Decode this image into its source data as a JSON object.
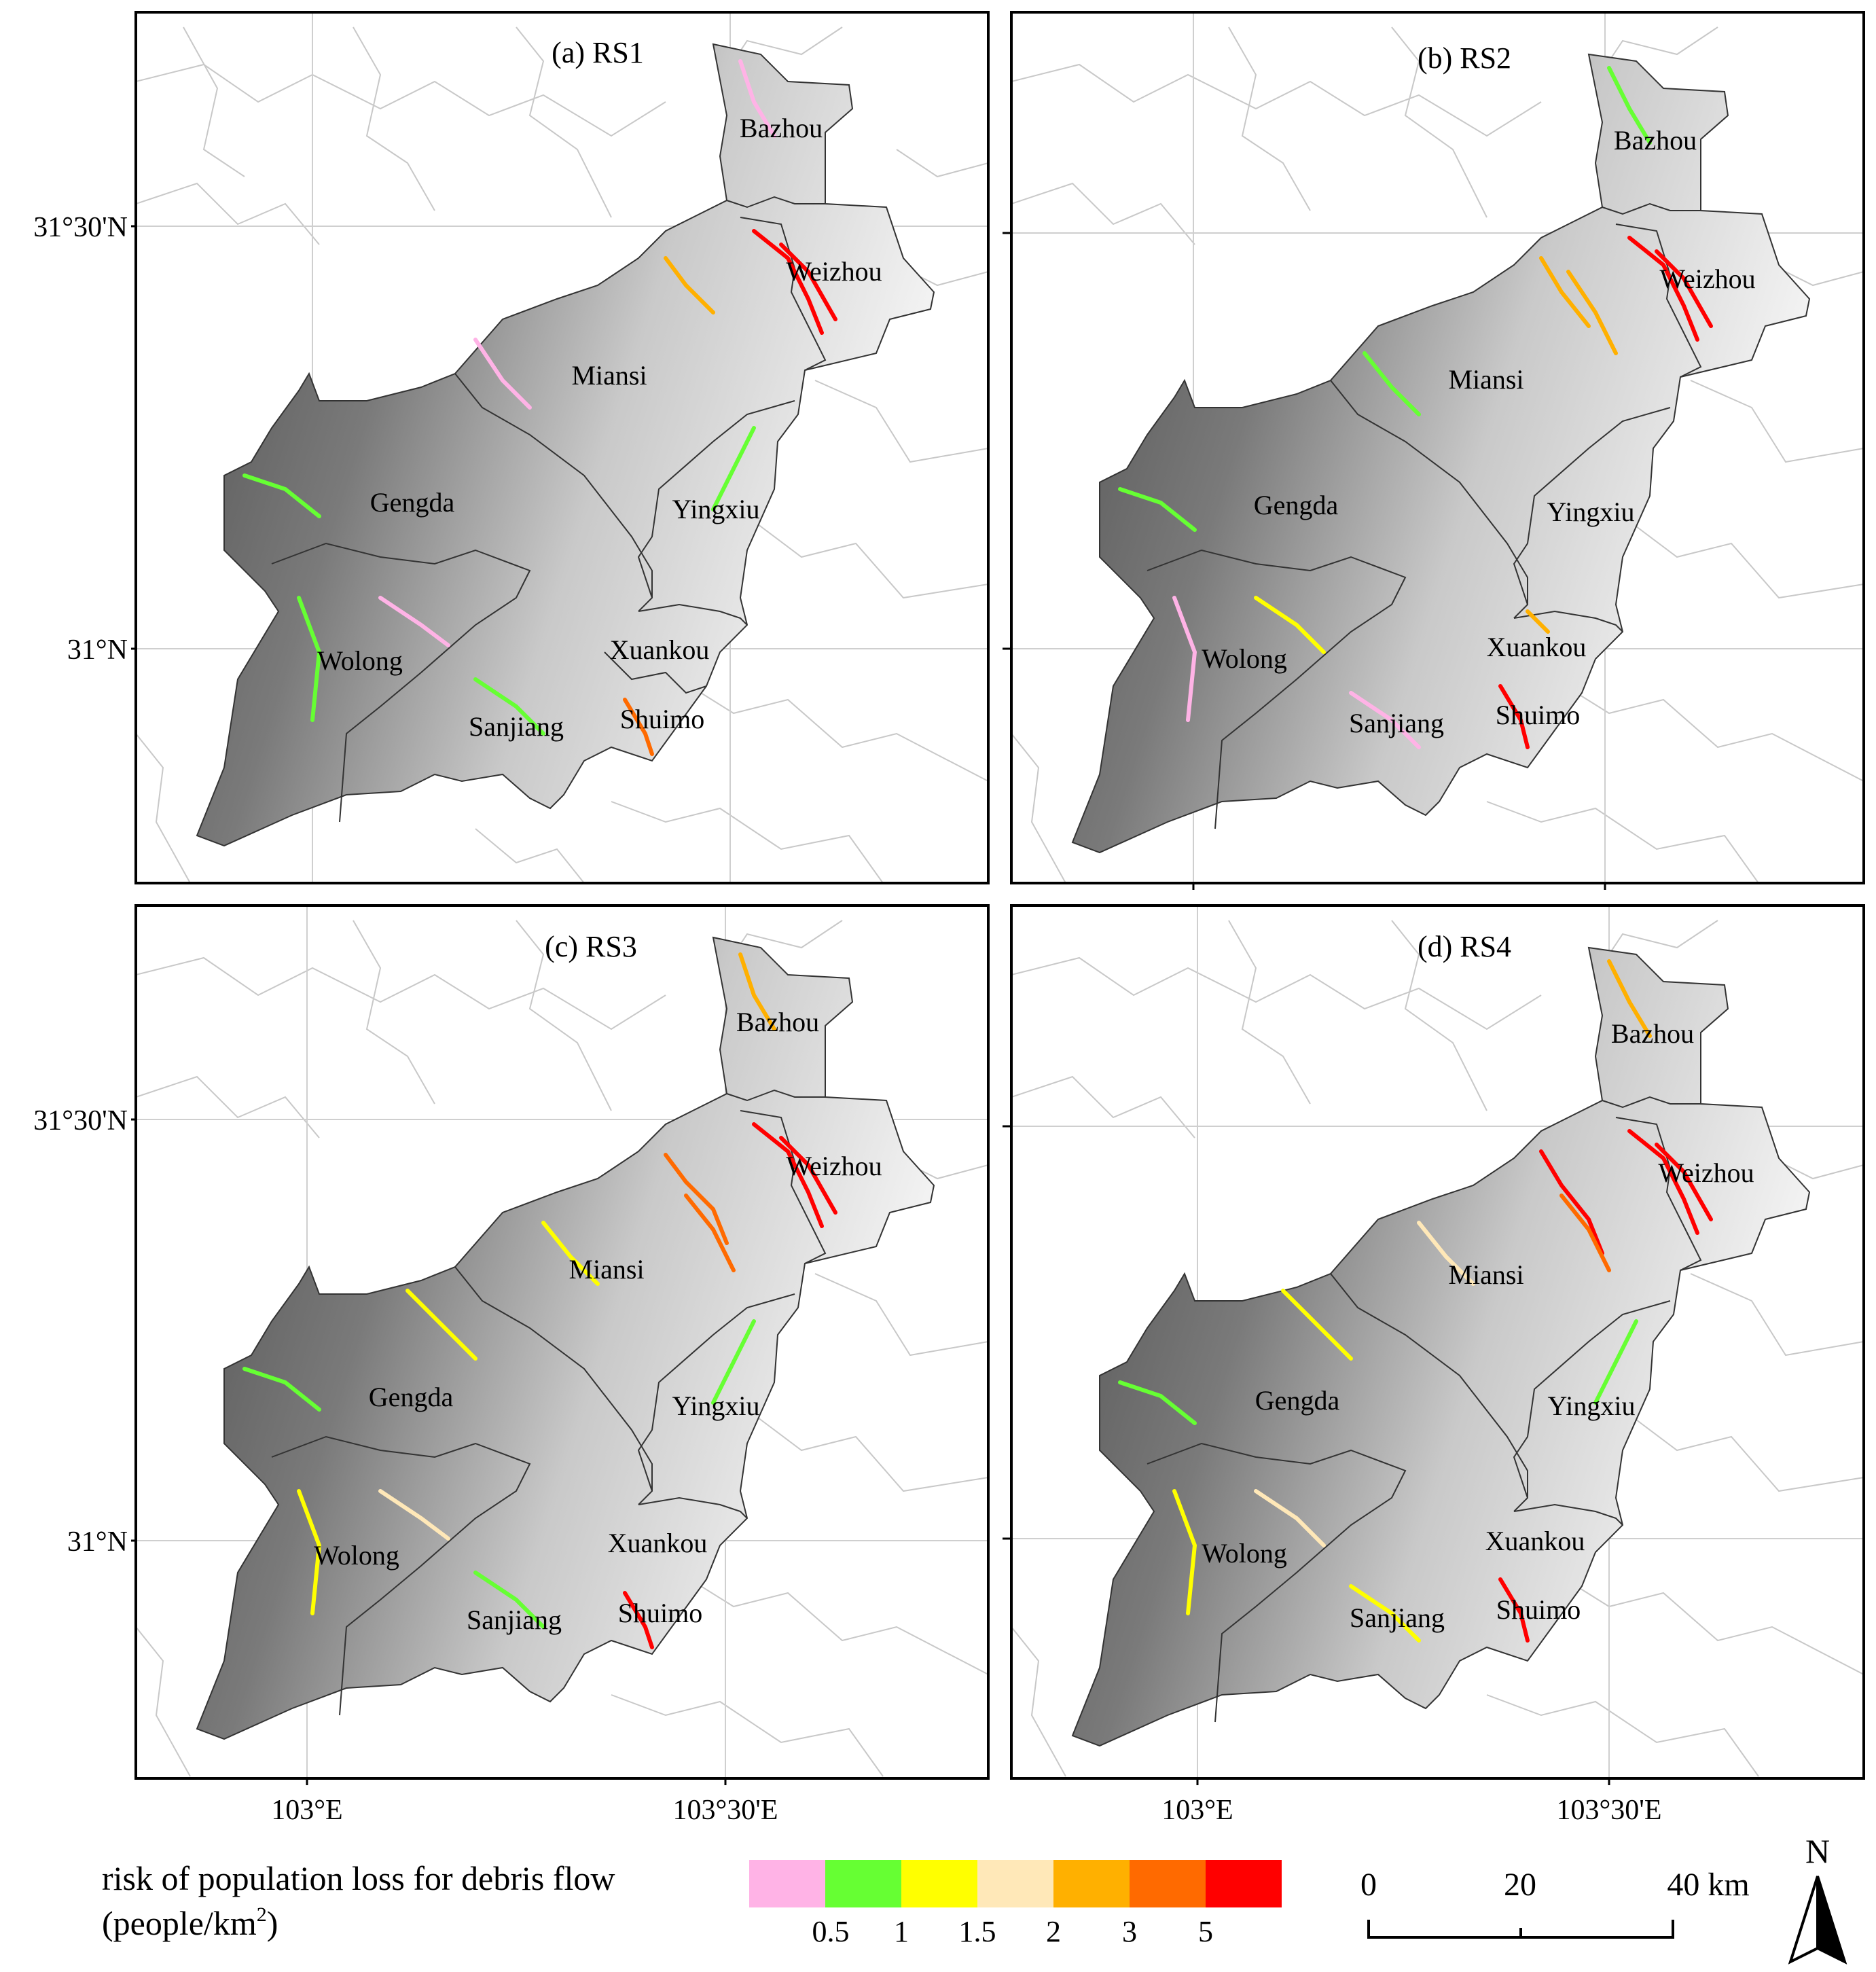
{
  "panels": [
    {
      "title": "(a) RS1",
      "scenario": "RS1"
    },
    {
      "title": "(b) RS2",
      "scenario": "RS2"
    },
    {
      "title": "(c) RS3",
      "scenario": "RS3"
    },
    {
      "title": "(d) RS4",
      "scenario": "RS4"
    }
  ],
  "towns": [
    "Bazhou",
    "Weizhou",
    "Miansi",
    "Gengda",
    "Yingxiu",
    "Wolong",
    "Xuankou",
    "Sanjiang",
    "Shuimo"
  ],
  "graticule": {
    "lat_labels": [
      "31°30'N",
      "31°N"
    ],
    "lon_labels": [
      "103°E",
      "103°30'E"
    ]
  },
  "legend": {
    "title_line1": "risk of population loss for debris flow",
    "title_line2_prefix": "(people/km",
    "title_line2_sup": "2",
    "title_line2_suffix": ")",
    "colors": [
      "#ffb3e6",
      "#66ff33",
      "#ffff00",
      "#ffe8b8",
      "#ffb000",
      "#ff6a00",
      "#ff0000"
    ],
    "ticks": [
      "0.5",
      "1",
      "1.5",
      "2",
      "3",
      "5"
    ]
  },
  "scale_bar": {
    "ticks": [
      "0",
      "20",
      "40 km"
    ]
  },
  "north_arrow": {
    "label": "N",
    "icon": "north-arrow-icon"
  }
}
